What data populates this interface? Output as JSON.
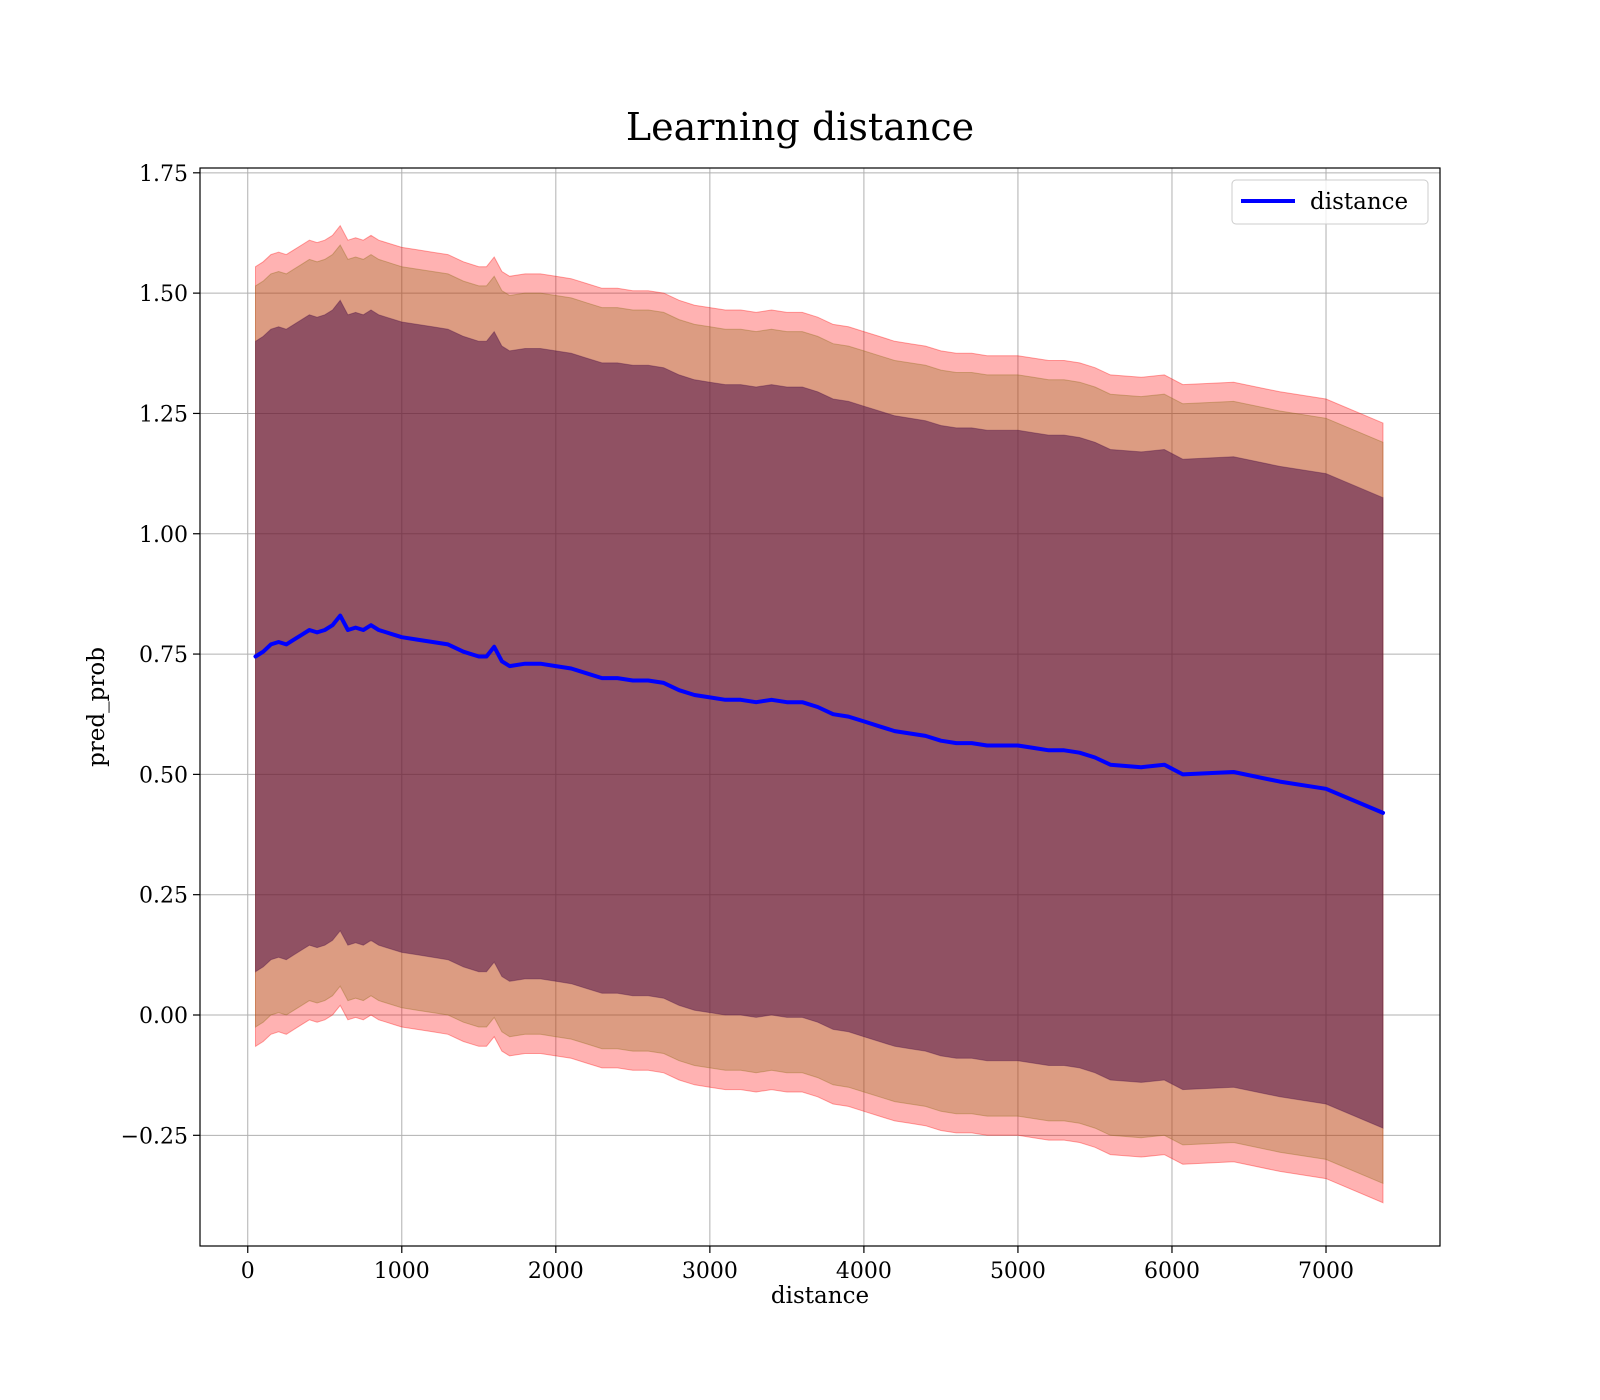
{
  "chart_data": {
    "type": "line",
    "title": "Learning distance",
    "xlabel": "distance",
    "ylabel": "pred_prob",
    "xlim": [
      -310,
      7740
    ],
    "ylim": [
      -0.48,
      1.76
    ],
    "xticks": [
      0,
      1000,
      2000,
      3000,
      4000,
      5000,
      6000,
      7000
    ],
    "xtick_labels": [
      "0",
      "1000",
      "2000",
      "3000",
      "4000",
      "5000",
      "6000",
      "7000"
    ],
    "yticks": [
      -0.25,
      0.0,
      0.25,
      0.5,
      0.75,
      1.0,
      1.25,
      1.5,
      1.75
    ],
    "ytick_labels": [
      "−0.25",
      "0.00",
      "0.25",
      "0.50",
      "0.75",
      "1.00",
      "1.25",
      "1.50",
      "1.75"
    ],
    "grid": true,
    "legend": {
      "position": "top-right",
      "entries": [
        "distance"
      ]
    },
    "colors": {
      "line": "#0000ff",
      "band_outer": "#ff0000",
      "band_middle": "#8b6914",
      "band_inner": "#4b0d46"
    },
    "series": [
      {
        "name": "distance",
        "x": [
          50,
          100,
          150,
          200,
          250,
          300,
          350,
          400,
          450,
          500,
          550,
          600,
          650,
          700,
          750,
          800,
          850,
          900,
          950,
          1000,
          1100,
          1200,
          1300,
          1400,
          1500,
          1550,
          1600,
          1650,
          1700,
          1800,
          1900,
          2000,
          2100,
          2200,
          2300,
          2400,
          2500,
          2600,
          2700,
          2800,
          2900,
          3000,
          3100,
          3200,
          3300,
          3400,
          3500,
          3600,
          3700,
          3800,
          3900,
          4000,
          4100,
          4200,
          4300,
          4400,
          4500,
          4600,
          4700,
          4800,
          4900,
          5000,
          5100,
          5200,
          5300,
          5400,
          5500,
          5600,
          5800,
          5950,
          6070,
          6400,
          6700,
          7000,
          7370
        ],
        "y": [
          0.745,
          0.755,
          0.77,
          0.775,
          0.77,
          0.78,
          0.79,
          0.8,
          0.795,
          0.8,
          0.81,
          0.83,
          0.8,
          0.805,
          0.8,
          0.81,
          0.8,
          0.795,
          0.79,
          0.785,
          0.78,
          0.775,
          0.77,
          0.755,
          0.745,
          0.745,
          0.765,
          0.735,
          0.725,
          0.73,
          0.73,
          0.725,
          0.72,
          0.71,
          0.7,
          0.7,
          0.695,
          0.695,
          0.69,
          0.675,
          0.665,
          0.66,
          0.655,
          0.655,
          0.65,
          0.655,
          0.65,
          0.65,
          0.64,
          0.625,
          0.62,
          0.61,
          0.6,
          0.59,
          0.585,
          0.58,
          0.57,
          0.565,
          0.565,
          0.56,
          0.56,
          0.56,
          0.555,
          0.55,
          0.55,
          0.545,
          0.535,
          0.52,
          0.515,
          0.52,
          0.5,
          0.505,
          0.485,
          0.47,
          0.42
        ],
        "bands": [
          {
            "name": "outer",
            "lower_offset": -0.81,
            "upper_offset": 0.81
          },
          {
            "name": "middle",
            "lower_offset": -0.77,
            "upper_offset": 0.77
          },
          {
            "name": "inner",
            "lower_offset": -0.655,
            "upper_offset": 0.655
          }
        ]
      }
    ]
  }
}
